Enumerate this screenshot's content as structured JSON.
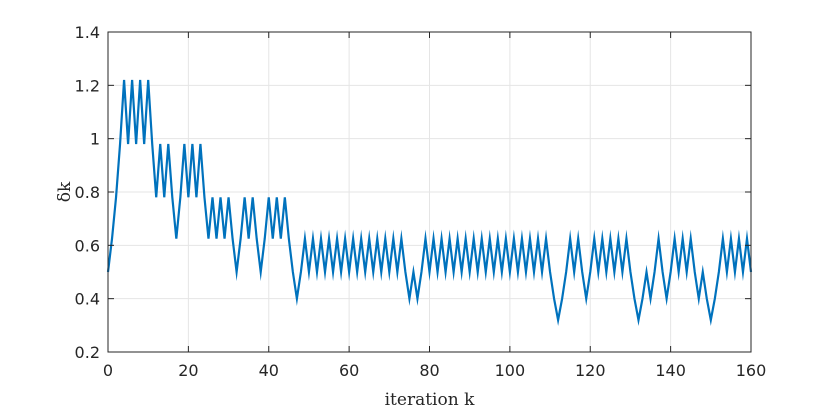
{
  "chart_data": {
    "type": "line",
    "xlabel": "iteration k",
    "ylabel": "δk",
    "xlim": [
      0,
      160
    ],
    "ylim": [
      0.2,
      1.4
    ],
    "xticks": [
      0,
      20,
      40,
      60,
      80,
      100,
      120,
      140,
      160
    ],
    "xtick_labels": [
      "0",
      "20",
      "40",
      "60",
      "80",
      "100",
      "120",
      "140",
      "160"
    ],
    "yticks": [
      0.2,
      0.4,
      0.6,
      0.8,
      1.0,
      1.2,
      1.4
    ],
    "ytick_labels": [
      "0.2",
      "0.4",
      "0.6",
      "0.8",
      "1",
      "1.2",
      "1.4"
    ],
    "grid": true,
    "box": true,
    "colors": {
      "line": "#0072BD",
      "grid": "#e5e5e5",
      "axis": "#262626"
    },
    "series": [
      {
        "values": [
          0.5,
          0.625,
          0.78,
          0.98,
          1.22,
          0.98,
          1.22,
          0.98,
          1.22,
          0.98,
          1.22,
          0.98,
          0.78,
          0.98,
          0.78,
          0.98,
          0.78,
          0.625,
          0.78,
          0.98,
          0.78,
          0.98,
          0.78,
          0.98,
          0.78,
          0.625,
          0.78,
          0.625,
          0.78,
          0.625,
          0.78,
          0.625,
          0.5,
          0.625,
          0.78,
          0.625,
          0.78,
          0.625,
          0.5,
          0.625,
          0.78,
          0.625,
          0.78,
          0.625,
          0.78,
          0.625,
          0.5,
          0.4,
          0.5,
          0.625,
          0.5,
          0.625,
          0.5,
          0.625,
          0.5,
          0.625,
          0.5,
          0.625,
          0.5,
          0.625,
          0.5,
          0.625,
          0.5,
          0.625,
          0.5,
          0.625,
          0.5,
          0.625,
          0.5,
          0.625,
          0.5,
          0.625,
          0.5,
          0.625,
          0.5,
          0.4,
          0.5,
          0.4,
          0.5,
          0.625,
          0.5,
          0.625,
          0.5,
          0.625,
          0.5,
          0.625,
          0.5,
          0.625,
          0.5,
          0.625,
          0.5,
          0.625,
          0.5,
          0.625,
          0.5,
          0.625,
          0.5,
          0.625,
          0.5,
          0.625,
          0.5,
          0.625,
          0.5,
          0.625,
          0.5,
          0.625,
          0.5,
          0.625,
          0.5,
          0.625,
          0.5,
          0.4,
          0.32,
          0.4,
          0.5,
          0.625,
          0.5,
          0.625,
          0.5,
          0.4,
          0.5,
          0.625,
          0.5,
          0.625,
          0.5,
          0.625,
          0.5,
          0.625,
          0.5,
          0.625,
          0.5,
          0.4,
          0.32,
          0.4,
          0.5,
          0.4,
          0.5,
          0.625,
          0.5,
          0.4,
          0.5,
          0.625,
          0.5,
          0.625,
          0.5,
          0.625,
          0.5,
          0.4,
          0.5,
          0.4,
          0.32,
          0.4,
          0.5,
          0.625,
          0.5,
          0.625,
          0.5,
          0.625,
          0.5,
          0.625,
          0.5
        ]
      }
    ]
  }
}
